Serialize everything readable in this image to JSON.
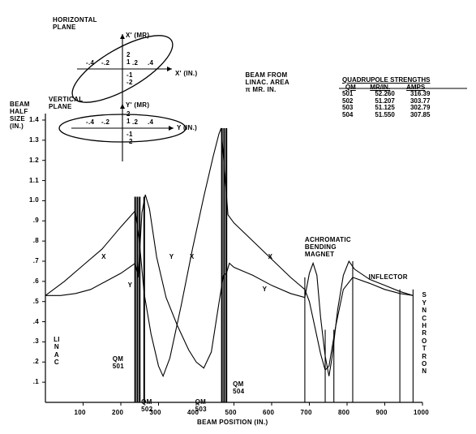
{
  "chart_data": {
    "type": "line",
    "ylabel": "BEAM\nHALF\nSIZE\n(IN.)",
    "xlabel": "BEAM POSITION (IN.)",
    "xlim": [
      0,
      1000
    ],
    "ylim": [
      0,
      1.4
    ],
    "xticks": [
      100,
      200,
      300,
      400,
      500,
      600,
      700,
      800,
      900,
      1000
    ],
    "yticks": [
      ".1",
      ".2",
      ".3",
      ".4",
      ".5",
      ".6",
      ".7",
      ".8",
      ".9",
      "1.0",
      "1.1",
      "1.2",
      "1.3",
      "1.4"
    ],
    "series": [
      {
        "name": "X",
        "points": [
          [
            0,
            0.53
          ],
          [
            50,
            0.6
          ],
          [
            100,
            0.68
          ],
          [
            150,
            0.76
          ],
          [
            200,
            0.87
          ],
          [
            238,
            0.95
          ],
          [
            248,
            0.82
          ],
          [
            262,
            0.54
          ],
          [
            280,
            0.34
          ],
          [
            300,
            0.18
          ],
          [
            312,
            0.13
          ],
          [
            330,
            0.22
          ],
          [
            360,
            0.48
          ],
          [
            390,
            0.76
          ],
          [
            420,
            1.02
          ],
          [
            445,
            1.22
          ],
          [
            460,
            1.33
          ],
          [
            466,
            1.36
          ],
          [
            474,
            1.18
          ],
          [
            484,
            0.93
          ],
          [
            500,
            0.89
          ],
          [
            550,
            0.8
          ],
          [
            600,
            0.71
          ],
          [
            650,
            0.62
          ],
          [
            688,
            0.56
          ],
          [
            700,
            0.5
          ],
          [
            715,
            0.37
          ],
          [
            730,
            0.24
          ],
          [
            742,
            0.16
          ],
          [
            752,
            0.18
          ],
          [
            770,
            0.38
          ],
          [
            790,
            0.56
          ],
          [
            815,
            0.62
          ],
          [
            860,
            0.59
          ],
          [
            900,
            0.56
          ],
          [
            940,
            0.54
          ],
          [
            975,
            0.53
          ]
        ]
      },
      {
        "name": "Y",
        "points": [
          [
            0,
            0.53
          ],
          [
            40,
            0.53
          ],
          [
            80,
            0.54
          ],
          [
            120,
            0.56
          ],
          [
            160,
            0.6
          ],
          [
            200,
            0.64
          ],
          [
            238,
            0.69
          ],
          [
            246,
            0.62
          ],
          [
            256,
            0.94
          ],
          [
            265,
            1.03
          ],
          [
            276,
            0.96
          ],
          [
            295,
            0.72
          ],
          [
            320,
            0.52
          ],
          [
            350,
            0.38
          ],
          [
            380,
            0.26
          ],
          [
            400,
            0.2
          ],
          [
            420,
            0.17
          ],
          [
            440,
            0.25
          ],
          [
            460,
            0.49
          ],
          [
            472,
            0.63
          ],
          [
            480,
            0.64
          ],
          [
            488,
            0.69
          ],
          [
            500,
            0.67
          ],
          [
            550,
            0.63
          ],
          [
            600,
            0.58
          ],
          [
            650,
            0.54
          ],
          [
            688,
            0.52
          ],
          [
            700,
            0.64
          ],
          [
            710,
            0.69
          ],
          [
            720,
            0.63
          ],
          [
            730,
            0.42
          ],
          [
            742,
            0.23
          ],
          [
            752,
            0.13
          ],
          [
            760,
            0.22
          ],
          [
            775,
            0.46
          ],
          [
            790,
            0.63
          ],
          [
            805,
            0.7
          ],
          [
            820,
            0.66
          ],
          [
            860,
            0.61
          ],
          [
            900,
            0.58
          ],
          [
            940,
            0.55
          ],
          [
            975,
            0.53
          ]
        ]
      }
    ],
    "series_labels": [
      {
        "text": "X",
        "x": 155,
        "y": 0.72
      },
      {
        "text": "Y",
        "x": 225,
        "y": 0.58
      },
      {
        "text": "Y",
        "x": 335,
        "y": 0.72
      },
      {
        "text": "X",
        "x": 389,
        "y": 0.72
      },
      {
        "text": "X",
        "x": 597,
        "y": 0.72
      },
      {
        "text": "Y",
        "x": 582,
        "y": 0.56
      }
    ],
    "element_lines": [
      238,
      244,
      250,
      262,
      468,
      474,
      480,
      688,
      742,
      765,
      815,
      940,
      975
    ],
    "annotations": [
      {
        "text": "QM\n501",
        "x": 178,
        "y": 0.235
      },
      {
        "text": "QM\n502",
        "x": 254,
        "y": 0.02
      },
      {
        "text": "QM\n503",
        "x": 397,
        "y": 0.02
      },
      {
        "text": "QM\n504",
        "x": 497,
        "y": 0.11
      },
      {
        "text": "ACHROMATIC\nBENDING\nMAGNET",
        "x": 688,
        "y": 0.825
      },
      {
        "text": "INFLECTOR",
        "x": 857,
        "y": 0.64
      },
      {
        "text": "BEAM FROM\nLINAC. AREA\nπ MR. IN.",
        "x": 530,
        "y": 1.64
      }
    ],
    "vertical_labels": [
      {
        "text": "LINAC",
        "x": 30,
        "y": 0.33
      },
      {
        "text": "SYNCHROTRON",
        "x": 1005,
        "y": 0.55
      }
    ],
    "phase_plots": [
      {
        "title": "HORIZONTAL\nPLANE",
        "xaxis_label": "X' (IN.)",
        "yaxis_label": "X' (MR)",
        "xticks": [
          "-.4",
          "-.2",
          ".2",
          ".4"
        ],
        "yticks": [
          "2",
          "1",
          "-1",
          "-2"
        ]
      },
      {
        "title": "VERTICAL\nPLANE",
        "xaxis_label": "Y (IN.)",
        "yaxis_label": "Y' (MR)",
        "xticks": [
          "-.4",
          "-.2",
          ".2",
          ".4"
        ],
        "yticks": [
          "2",
          "1",
          "-1",
          "-2"
        ]
      }
    ],
    "table": {
      "title": "QUADRUPOLE STRENGTHS",
      "columns": [
        "QM",
        "MR/IN.",
        "AMPS"
      ],
      "rows": [
        [
          "501",
          "52.260",
          "316.39"
        ],
        [
          "502",
          "51.207",
          "303.77"
        ],
        [
          "503",
          "51.125",
          "302.79"
        ],
        [
          "504",
          "51.550",
          "307.85"
        ]
      ]
    },
    "grid": false,
    "legend": "none"
  }
}
